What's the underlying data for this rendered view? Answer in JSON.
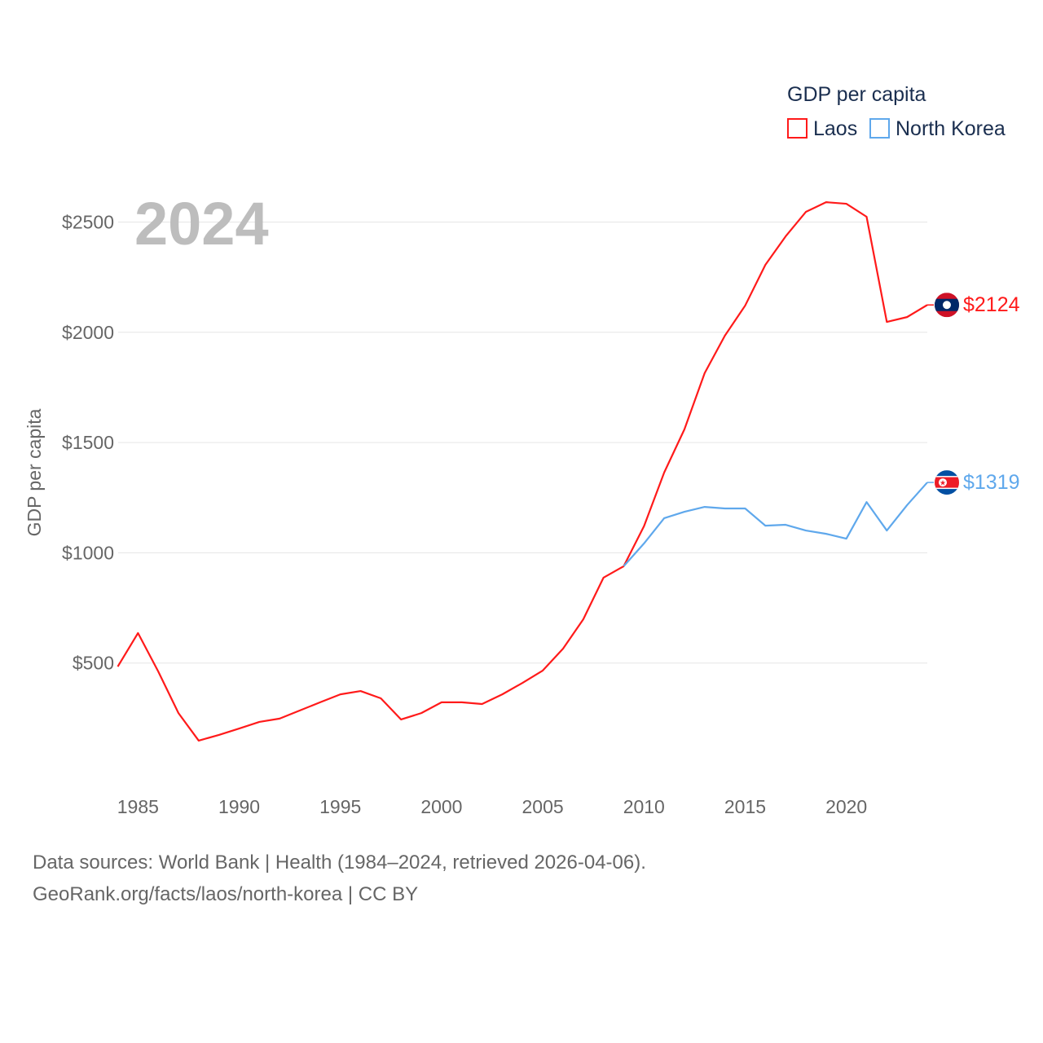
{
  "chart_data": {
    "type": "line",
    "title": "GDP per capita",
    "ylabel": "GDP per capita",
    "xlabel": "",
    "year_label": "2024",
    "xlim": [
      1984,
      2024
    ],
    "ylim": [
      0,
      2700
    ],
    "x_ticks": [
      1985,
      1990,
      1995,
      2000,
      2005,
      2010,
      2015,
      2020
    ],
    "y_ticks": [
      500,
      1000,
      1500,
      2000,
      2500
    ],
    "y_tick_labels": [
      "$500",
      "$1000",
      "$1500",
      "$2000",
      "$2500"
    ],
    "grid": true,
    "legend": {
      "title": "GDP per capita",
      "placement": "top-right"
    },
    "series": [
      {
        "name": "Laos",
        "color": "#ff1a1a",
        "end_label": "$2124",
        "flag": "laos-flag",
        "x": [
          1984,
          1985,
          1986,
          1987,
          1988,
          1989,
          1990,
          1991,
          1992,
          1993,
          1994,
          1995,
          1996,
          1997,
          1998,
          1999,
          2000,
          2001,
          2002,
          2003,
          2004,
          2005,
          2006,
          2007,
          2008,
          2009,
          2010,
          2011,
          2012,
          2013,
          2014,
          2015,
          2016,
          2017,
          2018,
          2019,
          2020,
          2021,
          2022,
          2023,
          2024
        ],
        "values": [
          484,
          636,
          462,
          273,
          148,
          174,
          203,
          233,
          248,
          285,
          322,
          358,
          373,
          340,
          244,
          273,
          322,
          322,
          314,
          358,
          410,
          466,
          565,
          698,
          887,
          939,
          1120,
          1364,
          1560,
          1815,
          1985,
          2121,
          2306,
          2435,
          2546,
          2590,
          2583,
          2524,
          2047,
          2069,
          2124
        ]
      },
      {
        "name": "North Korea",
        "color": "#5fa8ec",
        "end_label": "$1319",
        "flag": "north-korea-flag",
        "x": [
          2009,
          2010,
          2011,
          2012,
          2013,
          2014,
          2015,
          2016,
          2017,
          2018,
          2019,
          2020,
          2021,
          2022,
          2023,
          2024
        ],
        "values": [
          939,
          1042,
          1157,
          1186,
          1208,
          1201,
          1201,
          1123,
          1127,
          1101,
          1086,
          1064,
          1230,
          1101,
          1216,
          1319
        ]
      }
    ]
  },
  "footer": {
    "line1": "Data sources: World Bank | Health (1984–2024, retrieved 2026-04-06).",
    "line2": "GeoRank.org/facts/laos/north-korea | CC BY"
  }
}
